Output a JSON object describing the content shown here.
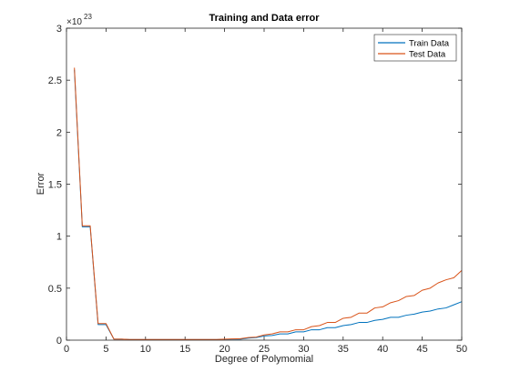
{
  "chart_data": {
    "type": "line",
    "title": "Training and Data error",
    "xlabel": "Degree of Polymomial",
    "ylabel": "Error",
    "exponent_base": "×10",
    "exponent_power": "23",
    "xlim": [
      0,
      50
    ],
    "ylim": [
      0,
      3
    ],
    "xticks": [
      0,
      5,
      10,
      15,
      20,
      25,
      30,
      35,
      40,
      45,
      50
    ],
    "yticks": [
      0,
      0.5,
      1,
      1.5,
      2,
      2.5,
      3
    ],
    "xtick_labels": [
      "0",
      "5",
      "10",
      "15",
      "20",
      "25",
      "30",
      "35",
      "40",
      "45",
      "50"
    ],
    "ytick_labels": [
      "0",
      "0.5",
      "1",
      "1.5",
      "2",
      "2.5",
      "3"
    ],
    "legend_position": "top-right",
    "x": [
      1,
      2,
      3,
      4,
      5,
      6,
      7,
      8,
      9,
      10,
      11,
      12,
      13,
      14,
      15,
      16,
      17,
      18,
      19,
      20,
      21,
      22,
      23,
      24,
      25,
      26,
      27,
      28,
      29,
      30,
      31,
      32,
      33,
      34,
      35,
      36,
      37,
      38,
      39,
      40,
      41,
      42,
      43,
      44,
      45,
      46,
      47,
      48,
      49,
      50
    ],
    "series": [
      {
        "name": "Train Data",
        "color": "#0072bd",
        "values": [
          2.6,
          1.09,
          1.09,
          0.15,
          0.15,
          0.01,
          0.01,
          0.005,
          0.005,
          0.005,
          0.005,
          0.005,
          0.005,
          0.005,
          0.005,
          0.005,
          0.005,
          0.005,
          0.005,
          0.008,
          0.01,
          0.01,
          0.02,
          0.025,
          0.04,
          0.045,
          0.06,
          0.06,
          0.08,
          0.08,
          0.1,
          0.1,
          0.12,
          0.12,
          0.14,
          0.15,
          0.17,
          0.17,
          0.19,
          0.2,
          0.22,
          0.22,
          0.24,
          0.25,
          0.27,
          0.28,
          0.3,
          0.31,
          0.34,
          0.37
        ]
      },
      {
        "name": "Test Data",
        "color": "#d95319",
        "values": [
          2.62,
          1.1,
          1.1,
          0.16,
          0.16,
          0.01,
          0.01,
          0.006,
          0.006,
          0.006,
          0.006,
          0.006,
          0.006,
          0.006,
          0.006,
          0.006,
          0.006,
          0.006,
          0.006,
          0.01,
          0.012,
          0.014,
          0.025,
          0.03,
          0.05,
          0.06,
          0.08,
          0.08,
          0.1,
          0.1,
          0.13,
          0.14,
          0.17,
          0.17,
          0.21,
          0.22,
          0.26,
          0.26,
          0.31,
          0.32,
          0.36,
          0.38,
          0.42,
          0.43,
          0.48,
          0.5,
          0.55,
          0.58,
          0.6,
          0.67
        ]
      }
    ]
  }
}
